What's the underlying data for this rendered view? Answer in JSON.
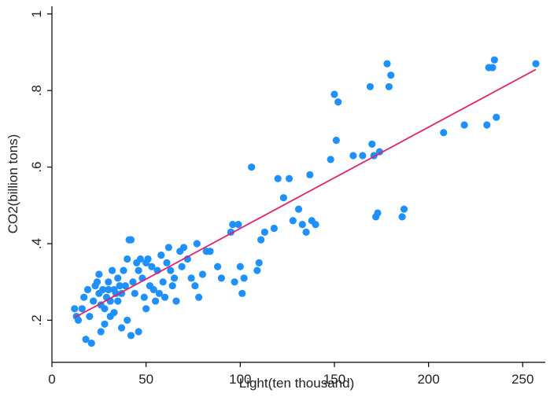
{
  "chart_data": {
    "type": "scatter",
    "xlabel": "Light(ten thousand)",
    "ylabel": "CO2(billion tons)",
    "xlim": [
      0,
      262
    ],
    "ylim": [
      0.09,
      1.02
    ],
    "x_ticks": [
      0,
      50,
      100,
      150,
      200,
      250
    ],
    "x_tick_labels": [
      "0",
      "50",
      "100",
      "150",
      "200",
      "250"
    ],
    "y_ticks": [
      0.2,
      0.4,
      0.6,
      0.8,
      1.0
    ],
    "y_tick_labels": [
      ".2",
      ".4",
      ".6",
      ".8",
      "1"
    ],
    "grid": false,
    "colors": {
      "points": "#1e90ff",
      "fit_line": "#e0206a"
    },
    "fit_line": {
      "x": [
        12,
        257
      ],
      "y": [
        0.207,
        0.855
      ]
    },
    "points": [
      {
        "x": 12,
        "y": 0.23
      },
      {
        "x": 13,
        "y": 0.21
      },
      {
        "x": 14,
        "y": 0.2
      },
      {
        "x": 16,
        "y": 0.23
      },
      {
        "x": 17,
        "y": 0.26
      },
      {
        "x": 18,
        "y": 0.15
      },
      {
        "x": 19,
        "y": 0.28
      },
      {
        "x": 20,
        "y": 0.21
      },
      {
        "x": 21,
        "y": 0.14
      },
      {
        "x": 22,
        "y": 0.25
      },
      {
        "x": 23,
        "y": 0.29
      },
      {
        "x": 24,
        "y": 0.3
      },
      {
        "x": 25,
        "y": 0.32
      },
      {
        "x": 25,
        "y": 0.27
      },
      {
        "x": 26,
        "y": 0.24
      },
      {
        "x": 26,
        "y": 0.17
      },
      {
        "x": 27,
        "y": 0.28
      },
      {
        "x": 28,
        "y": 0.23
      },
      {
        "x": 28,
        "y": 0.19
      },
      {
        "x": 29,
        "y": 0.26
      },
      {
        "x": 30,
        "y": 0.3
      },
      {
        "x": 30,
        "y": 0.28
      },
      {
        "x": 31,
        "y": 0.25
      },
      {
        "x": 31,
        "y": 0.21
      },
      {
        "x": 32,
        "y": 0.33
      },
      {
        "x": 33,
        "y": 0.28
      },
      {
        "x": 33,
        "y": 0.22
      },
      {
        "x": 34,
        "y": 0.27
      },
      {
        "x": 35,
        "y": 0.31
      },
      {
        "x": 35,
        "y": 0.25
      },
      {
        "x": 36,
        "y": 0.29
      },
      {
        "x": 37,
        "y": 0.27
      },
      {
        "x": 37,
        "y": 0.18
      },
      {
        "x": 38,
        "y": 0.33
      },
      {
        "x": 39,
        "y": 0.29
      },
      {
        "x": 40,
        "y": 0.36
      },
      {
        "x": 40,
        "y": 0.2
      },
      {
        "x": 41,
        "y": 0.41
      },
      {
        "x": 42,
        "y": 0.41
      },
      {
        "x": 42,
        "y": 0.16
      },
      {
        "x": 43,
        "y": 0.3
      },
      {
        "x": 44,
        "y": 0.27
      },
      {
        "x": 45,
        "y": 0.35
      },
      {
        "x": 46,
        "y": 0.33
      },
      {
        "x": 46,
        "y": 0.17
      },
      {
        "x": 47,
        "y": 0.36
      },
      {
        "x": 48,
        "y": 0.31
      },
      {
        "x": 49,
        "y": 0.26
      },
      {
        "x": 50,
        "y": 0.35
      },
      {
        "x": 50,
        "y": 0.23
      },
      {
        "x": 51,
        "y": 0.36
      },
      {
        "x": 52,
        "y": 0.29
      },
      {
        "x": 53,
        "y": 0.34
      },
      {
        "x": 54,
        "y": 0.28
      },
      {
        "x": 55,
        "y": 0.25
      },
      {
        "x": 56,
        "y": 0.33
      },
      {
        "x": 57,
        "y": 0.27
      },
      {
        "x": 58,
        "y": 0.37
      },
      {
        "x": 59,
        "y": 0.3
      },
      {
        "x": 60,
        "y": 0.26
      },
      {
        "x": 61,
        "y": 0.35
      },
      {
        "x": 62,
        "y": 0.39
      },
      {
        "x": 63,
        "y": 0.33
      },
      {
        "x": 64,
        "y": 0.29
      },
      {
        "x": 65,
        "y": 0.31
      },
      {
        "x": 66,
        "y": 0.25
      },
      {
        "x": 68,
        "y": 0.38
      },
      {
        "x": 69,
        "y": 0.34
      },
      {
        "x": 70,
        "y": 0.39
      },
      {
        "x": 72,
        "y": 0.36
      },
      {
        "x": 74,
        "y": 0.31
      },
      {
        "x": 76,
        "y": 0.29
      },
      {
        "x": 77,
        "y": 0.4
      },
      {
        "x": 78,
        "y": 0.26
      },
      {
        "x": 80,
        "y": 0.32
      },
      {
        "x": 82,
        "y": 0.38
      },
      {
        "x": 84,
        "y": 0.38
      },
      {
        "x": 88,
        "y": 0.34
      },
      {
        "x": 90,
        "y": 0.31
      },
      {
        "x": 95,
        "y": 0.43
      },
      {
        "x": 96,
        "y": 0.45
      },
      {
        "x": 97,
        "y": 0.3
      },
      {
        "x": 99,
        "y": 0.45
      },
      {
        "x": 100,
        "y": 0.34
      },
      {
        "x": 101,
        "y": 0.27
      },
      {
        "x": 102,
        "y": 0.31
      },
      {
        "x": 106,
        "y": 0.6
      },
      {
        "x": 109,
        "y": 0.33
      },
      {
        "x": 110,
        "y": 0.35
      },
      {
        "x": 111,
        "y": 0.41
      },
      {
        "x": 113,
        "y": 0.43
      },
      {
        "x": 118,
        "y": 0.44
      },
      {
        "x": 120,
        "y": 0.57
      },
      {
        "x": 123,
        "y": 0.52
      },
      {
        "x": 126,
        "y": 0.57
      },
      {
        "x": 128,
        "y": 0.46
      },
      {
        "x": 131,
        "y": 0.49
      },
      {
        "x": 133,
        "y": 0.45
      },
      {
        "x": 135,
        "y": 0.43
      },
      {
        "x": 137,
        "y": 0.58
      },
      {
        "x": 138,
        "y": 0.46
      },
      {
        "x": 140,
        "y": 0.45
      },
      {
        "x": 148,
        "y": 0.62
      },
      {
        "x": 150,
        "y": 0.79
      },
      {
        "x": 151,
        "y": 0.67
      },
      {
        "x": 152,
        "y": 0.77
      },
      {
        "x": 160,
        "y": 0.63
      },
      {
        "x": 165,
        "y": 0.63
      },
      {
        "x": 169,
        "y": 0.81
      },
      {
        "x": 170,
        "y": 0.66
      },
      {
        "x": 171,
        "y": 0.63
      },
      {
        "x": 172,
        "y": 0.47
      },
      {
        "x": 173,
        "y": 0.48
      },
      {
        "x": 174,
        "y": 0.64
      },
      {
        "x": 178,
        "y": 0.87
      },
      {
        "x": 179,
        "y": 0.81
      },
      {
        "x": 180,
        "y": 0.84
      },
      {
        "x": 186,
        "y": 0.47
      },
      {
        "x": 187,
        "y": 0.49
      },
      {
        "x": 208,
        "y": 0.69
      },
      {
        "x": 219,
        "y": 0.71
      },
      {
        "x": 231,
        "y": 0.71
      },
      {
        "x": 232,
        "y": 0.86
      },
      {
        "x": 234,
        "y": 0.86
      },
      {
        "x": 235,
        "y": 0.88
      },
      {
        "x": 236,
        "y": 0.73
      },
      {
        "x": 257,
        "y": 0.87
      }
    ]
  }
}
